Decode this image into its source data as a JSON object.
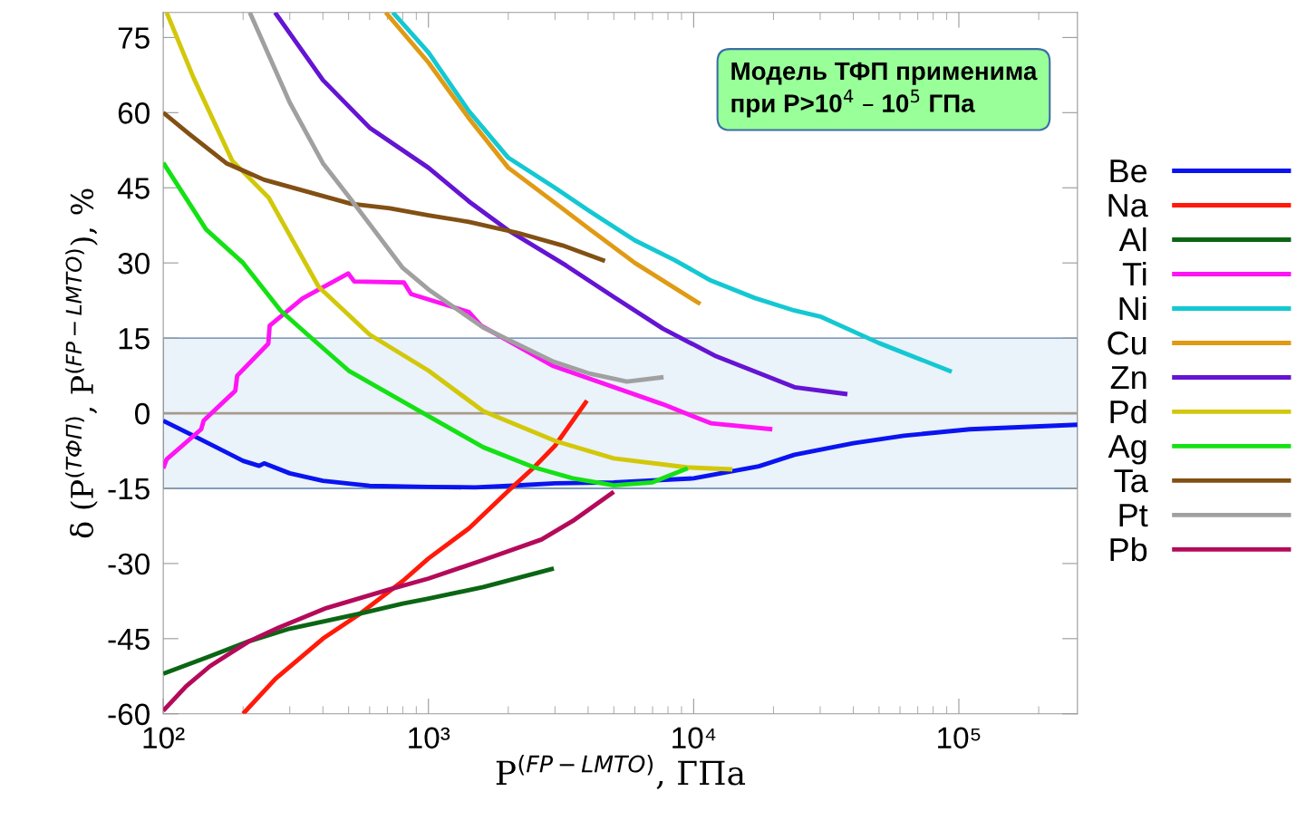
{
  "chart_data": {
    "type": "line",
    "xlabel": "P$^{(FP−LMTO)}$, ГПа",
    "ylabel": "δ (P$^{(ТФП)}$, P$^{(FP−LMTO)}$), %",
    "log": "x",
    "xlim": [
      100,
      280000
    ],
    "xticks": [
      {
        "value": 100,
        "label": "10²"
      },
      {
        "value": 1000,
        "label": "10³"
      },
      {
        "value": 10000,
        "label": "10⁴"
      },
      {
        "value": 100000,
        "label": "10⁵"
      }
    ],
    "ylim": [
      -60,
      80
    ],
    "yticks": [
      -60,
      -45,
      -30,
      -15,
      0,
      15,
      30,
      45,
      60,
      75
    ],
    "grid": false,
    "legend": "right",
    "line_style": "solid",
    "marker": "none",
    "annotations": [
      "Модель ТФП применима\nпри P>10$^{4}$ – 10$^{5}$ ГПа"
    ],
    "ref_lines": [
      {
        "axis": "y",
        "value": 0,
        "color": "#a89a8a"
      }
    ],
    "bands": [
      {
        "axis": "y",
        "from": -15,
        "to": 15,
        "color": "#eaf2fa"
      }
    ],
    "series": [
      {
        "name": "Be",
        "color": "#0a14f0",
        "x": [
          100,
          130,
          200,
          230,
          240,
          300,
          400,
          600,
          1000,
          1500,
          2000,
          3000,
          5000,
          10000,
          17600,
          24000,
          40000,
          62000,
          110000,
          280000
        ],
        "values": [
          -1.5,
          -4.5,
          -9.5,
          -10.5,
          -10,
          -12,
          -13.5,
          -14.5,
          -14.7,
          -14.8,
          -14.5,
          -14,
          -13.8,
          -13,
          -10.6,
          -8.3,
          -6,
          -4.5,
          -3.2,
          -2.3
        ]
      },
      {
        "name": "Na",
        "color": "#ff1a0a",
        "x": [
          200,
          265,
          400,
          553,
          800,
          1000,
          1420,
          2000,
          2500,
          3000,
          3960
        ],
        "values": [
          -60,
          -53,
          -45,
          -40,
          -33.5,
          -29,
          -23,
          -15.5,
          -10.8,
          -6.5,
          2.5
        ]
      },
      {
        "name": "Al",
        "color": "#0b6614",
        "x": [
          100,
          150,
          211,
          300,
          553,
          800,
          1000,
          1610,
          2970
        ],
        "values": [
          -52,
          -48.5,
          -45.5,
          -43,
          -40,
          -38,
          -37,
          -34.7,
          -31
        ]
      },
      {
        "name": "Ti",
        "color": "#ff14f5",
        "x": [
          100,
          103,
          139,
          142,
          187,
          190,
          249,
          252,
          335,
          498,
          525,
          808,
          860,
          1420,
          1580,
          2960,
          7650,
          11600,
          19800
        ],
        "values": [
          -11,
          -9.2,
          -3.2,
          -1.5,
          4.5,
          7.5,
          13.9,
          17.5,
          22.9,
          27.9,
          26.3,
          26.1,
          23.8,
          20.2,
          17.5,
          9.4,
          1.8,
          -2,
          -3.2
        ]
      },
      {
        "name": "Ni",
        "color": "#14c8d2",
        "x": [
          734,
          1000,
          1420,
          2000,
          3000,
          4060,
          6000,
          8450,
          11600,
          17000,
          24000,
          30000,
          50000,
          94000
        ],
        "values": [
          80,
          72,
          60.3,
          51,
          45,
          40.3,
          34.5,
          30.6,
          26.5,
          23,
          20.5,
          19.3,
          14,
          8.3
        ]
      },
      {
        "name": "Cu",
        "color": "#e09a14",
        "x": [
          690,
          1000,
          1420,
          2000,
          3000,
          4060,
          6000,
          10600
        ],
        "values": [
          80,
          70,
          58.9,
          49,
          42,
          36.7,
          30,
          21.8
        ]
      },
      {
        "name": "Zn",
        "color": "#6414d2",
        "x": [
          264,
          400,
          600,
          1000,
          1420,
          2000,
          3300,
          5000,
          7650,
          12000,
          24000,
          38000
        ],
        "values": [
          80,
          66.5,
          57,
          49,
          42.3,
          36.5,
          29.5,
          23.2,
          16.9,
          11.5,
          5.2,
          3.8
        ]
      },
      {
        "name": "Pd",
        "color": "#d2c80a",
        "x": [
          103,
          130,
          182,
          250,
          386,
          600,
          1000,
          1610,
          3030,
          5000,
          9400,
          14000
        ],
        "values": [
          80,
          67,
          50.4,
          43,
          25.2,
          15.7,
          8.5,
          0.4,
          -5.6,
          -9,
          -10.8,
          -11.2
        ]
      },
      {
        "name": "Ag",
        "color": "#14e114",
        "x": [
          100,
          145,
          200,
          277,
          350,
          500,
          958,
          1610,
          2500,
          3500,
          5000,
          7000,
          9500
        ],
        "values": [
          50,
          36.7,
          30,
          20.5,
          15.7,
          8.5,
          0,
          -6.8,
          -10.8,
          -13,
          -14.4,
          -13.8,
          -11
        ]
      },
      {
        "name": "Ta",
        "color": "#825014",
        "x": [
          100,
          125,
          173,
          240,
          510,
          715,
          1000,
          1420,
          2170,
          3200,
          4630
        ],
        "values": [
          60,
          55.8,
          49.9,
          46.6,
          41.8,
          40.9,
          39.5,
          38.2,
          36,
          33.5,
          30.4
        ]
      },
      {
        "name": "Pt",
        "color": "#a0a0a0",
        "x": [
          212,
          300,
          400,
          510,
          800,
          1000,
          1610,
          2960,
          4000,
          5600,
          7700
        ],
        "values": [
          80,
          62,
          49.9,
          42.7,
          29,
          24.7,
          17.1,
          10.3,
          8,
          6.3,
          7.2
        ]
      },
      {
        "name": "Pb",
        "color": "#b40a5a",
        "x": [
          100,
          122,
          150,
          211,
          272,
          412,
          700,
          1000,
          1610,
          2670,
          3500,
          5000
        ],
        "values": [
          -59.4,
          -54.5,
          -50.5,
          -45.5,
          -42.8,
          -38.9,
          -35.3,
          -33,
          -29.3,
          -25.2,
          -21.5,
          -15.7
        ]
      }
    ]
  }
}
